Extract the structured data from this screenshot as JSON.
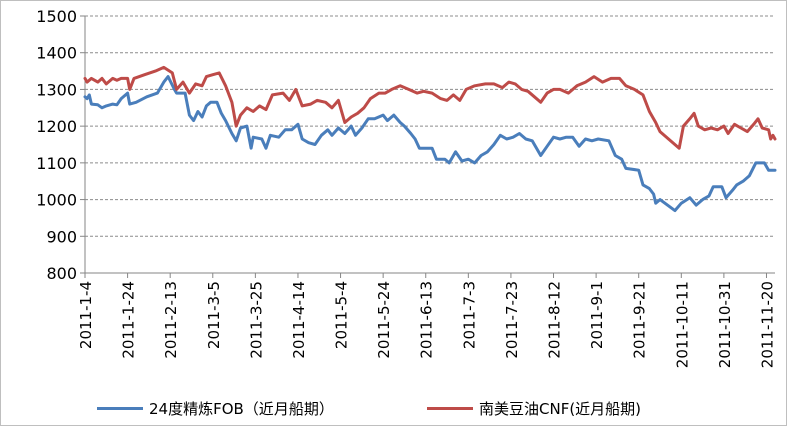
{
  "chart_data": {
    "type": "line",
    "title": "",
    "xlabel": "",
    "ylabel": "",
    "ylim": [
      800,
      1500
    ],
    "y_ticks": [
      800,
      900,
      1000,
      1100,
      1200,
      1300,
      1400,
      1500
    ],
    "x_tick_labels": [
      "2011-1-4",
      "2011-1-24",
      "2011-2-13",
      "2011-3-5",
      "2011-3-25",
      "2011-4-14",
      "2011-5-4",
      "2011-5-24",
      "2011-6-13",
      "2011-7-3",
      "2011-7-23",
      "2011-8-12",
      "2011-9-1",
      "2011-9-21",
      "2011-10-11",
      "2011-10-31",
      "2011-11-20"
    ],
    "x_start": "2011-01-04",
    "x_end": "2011-11-24",
    "grid": true,
    "legend_position": "bottom",
    "series": [
      {
        "name": "24度精炼FOB（近月船期）",
        "color": "#4a7ebb",
        "points": [
          [
            "2011-01-04",
            1280
          ],
          [
            "2011-01-05",
            1275
          ],
          [
            "2011-01-06",
            1285
          ],
          [
            "2011-01-07",
            1260
          ],
          [
            "2011-01-10",
            1258
          ],
          [
            "2011-01-12",
            1250
          ],
          [
            "2011-01-14",
            1255
          ],
          [
            "2011-01-17",
            1260
          ],
          [
            "2011-01-19",
            1258
          ],
          [
            "2011-01-21",
            1275
          ],
          [
            "2011-01-24",
            1290
          ],
          [
            "2011-01-25",
            1260
          ],
          [
            "2011-01-28",
            1265
          ],
          [
            "2011-02-02",
            1280
          ],
          [
            "2011-02-07",
            1290
          ],
          [
            "2011-02-10",
            1320
          ],
          [
            "2011-02-12",
            1335
          ],
          [
            "2011-02-15",
            1300
          ],
          [
            "2011-02-16",
            1290
          ],
          [
            "2011-02-20",
            1290
          ],
          [
            "2011-02-22",
            1230
          ],
          [
            "2011-02-24",
            1215
          ],
          [
            "2011-02-26",
            1240
          ],
          [
            "2011-02-28",
            1225
          ],
          [
            "2011-03-02",
            1255
          ],
          [
            "2011-03-04",
            1265
          ],
          [
            "2011-03-07",
            1265
          ],
          [
            "2011-03-09",
            1235
          ],
          [
            "2011-03-11",
            1215
          ],
          [
            "2011-03-14",
            1180
          ],
          [
            "2011-03-16",
            1160
          ],
          [
            "2011-03-18",
            1195
          ],
          [
            "2011-03-21",
            1200
          ],
          [
            "2011-03-23",
            1140
          ],
          [
            "2011-03-24",
            1170
          ],
          [
            "2011-03-28",
            1165
          ],
          [
            "2011-03-30",
            1140
          ],
          [
            "2011-04-01",
            1175
          ],
          [
            "2011-04-05",
            1170
          ],
          [
            "2011-04-08",
            1190
          ],
          [
            "2011-04-11",
            1190
          ],
          [
            "2011-04-14",
            1205
          ],
          [
            "2011-04-16",
            1165
          ],
          [
            "2011-04-19",
            1155
          ],
          [
            "2011-04-22",
            1150
          ],
          [
            "2011-04-25",
            1175
          ],
          [
            "2011-04-28",
            1190
          ],
          [
            "2011-04-30",
            1175
          ],
          [
            "2011-05-03",
            1195
          ],
          [
            "2011-05-06",
            1180
          ],
          [
            "2011-05-09",
            1200
          ],
          [
            "2011-05-11",
            1175
          ],
          [
            "2011-05-14",
            1195
          ],
          [
            "2011-05-17",
            1220
          ],
          [
            "2011-05-20",
            1220
          ],
          [
            "2011-05-24",
            1230
          ],
          [
            "2011-05-26",
            1215
          ],
          [
            "2011-05-29",
            1230
          ],
          [
            "2011-06-01",
            1210
          ],
          [
            "2011-06-03",
            1200
          ],
          [
            "2011-06-06",
            1180
          ],
          [
            "2011-06-08",
            1165
          ],
          [
            "2011-06-10",
            1140
          ],
          [
            "2011-06-16",
            1140
          ],
          [
            "2011-06-18",
            1110
          ],
          [
            "2011-06-22",
            1110
          ],
          [
            "2011-06-24",
            1100
          ],
          [
            "2011-06-27",
            1130
          ],
          [
            "2011-06-30",
            1105
          ],
          [
            "2011-07-03",
            1110
          ],
          [
            "2011-07-06",
            1100
          ],
          [
            "2011-07-09",
            1120
          ],
          [
            "2011-07-12",
            1130
          ],
          [
            "2011-07-15",
            1150
          ],
          [
            "2011-07-18",
            1175
          ],
          [
            "2011-07-21",
            1165
          ],
          [
            "2011-07-24",
            1170
          ],
          [
            "2011-07-27",
            1180
          ],
          [
            "2011-07-30",
            1165
          ],
          [
            "2011-08-02",
            1160
          ],
          [
            "2011-08-06",
            1120
          ],
          [
            "2011-08-09",
            1145
          ],
          [
            "2011-08-12",
            1170
          ],
          [
            "2011-08-15",
            1165
          ],
          [
            "2011-08-18",
            1170
          ],
          [
            "2011-08-21",
            1170
          ],
          [
            "2011-08-24",
            1145
          ],
          [
            "2011-08-27",
            1165
          ],
          [
            "2011-08-30",
            1160
          ],
          [
            "2011-09-02",
            1165
          ],
          [
            "2011-09-07",
            1160
          ],
          [
            "2011-09-10",
            1120
          ],
          [
            "2011-09-13",
            1110
          ],
          [
            "2011-09-15",
            1085
          ],
          [
            "2011-09-21",
            1080
          ],
          [
            "2011-09-23",
            1040
          ],
          [
            "2011-09-26",
            1030
          ],
          [
            "2011-09-28",
            1015
          ],
          [
            "2011-09-29",
            990
          ],
          [
            "2011-10-01",
            1000
          ],
          [
            "2011-10-08",
            970
          ],
          [
            "2011-10-11",
            990
          ],
          [
            "2011-10-15",
            1005
          ],
          [
            "2011-10-18",
            985
          ],
          [
            "2011-10-21",
            1000
          ],
          [
            "2011-10-24",
            1010
          ],
          [
            "2011-10-26",
            1035
          ],
          [
            "2011-10-30",
            1035
          ],
          [
            "2011-11-01",
            1005
          ],
          [
            "2011-11-04",
            1025
          ],
          [
            "2011-11-06",
            1040
          ],
          [
            "2011-11-09",
            1050
          ],
          [
            "2011-11-12",
            1065
          ],
          [
            "2011-11-15",
            1100
          ],
          [
            "2011-11-19",
            1100
          ],
          [
            "2011-11-21",
            1080
          ],
          [
            "2011-11-24",
            1080
          ]
        ]
      },
      {
        "name": "南美豆油CNF(近月船期)",
        "color": "#be4b48",
        "points": [
          [
            "2011-01-04",
            1330
          ],
          [
            "2011-01-05",
            1320
          ],
          [
            "2011-01-07",
            1330
          ],
          [
            "2011-01-10",
            1320
          ],
          [
            "2011-01-12",
            1330
          ],
          [
            "2011-01-14",
            1315
          ],
          [
            "2011-01-17",
            1330
          ],
          [
            "2011-01-19",
            1325
          ],
          [
            "2011-01-21",
            1330
          ],
          [
            "2011-01-24",
            1330
          ],
          [
            "2011-01-25",
            1300
          ],
          [
            "2011-01-27",
            1330
          ],
          [
            "2011-02-01",
            1340
          ],
          [
            "2011-02-06",
            1350
          ],
          [
            "2011-02-10",
            1360
          ],
          [
            "2011-02-14",
            1345
          ],
          [
            "2011-02-16",
            1300
          ],
          [
            "2011-02-19",
            1320
          ],
          [
            "2011-02-22",
            1290
          ],
          [
            "2011-02-25",
            1315
          ],
          [
            "2011-02-28",
            1310
          ],
          [
            "2011-03-02",
            1335
          ],
          [
            "2011-03-05",
            1340
          ],
          [
            "2011-03-08",
            1345
          ],
          [
            "2011-03-11",
            1310
          ],
          [
            "2011-03-14",
            1265
          ],
          [
            "2011-03-16",
            1200
          ],
          [
            "2011-03-18",
            1230
          ],
          [
            "2011-03-21",
            1250
          ],
          [
            "2011-03-24",
            1240
          ],
          [
            "2011-03-27",
            1255
          ],
          [
            "2011-03-30",
            1245
          ],
          [
            "2011-04-02",
            1285
          ],
          [
            "2011-04-07",
            1290
          ],
          [
            "2011-04-10",
            1270
          ],
          [
            "2011-04-13",
            1300
          ],
          [
            "2011-04-16",
            1255
          ],
          [
            "2011-04-20",
            1260
          ],
          [
            "2011-04-23",
            1270
          ],
          [
            "2011-04-27",
            1265
          ],
          [
            "2011-04-30",
            1250
          ],
          [
            "2011-05-03",
            1270
          ],
          [
            "2011-05-06",
            1210
          ],
          [
            "2011-05-09",
            1225
          ],
          [
            "2011-05-12",
            1235
          ],
          [
            "2011-05-15",
            1250
          ],
          [
            "2011-05-18",
            1275
          ],
          [
            "2011-05-22",
            1290
          ],
          [
            "2011-05-25",
            1290
          ],
          [
            "2011-05-28",
            1300
          ],
          [
            "2011-06-01",
            1310
          ],
          [
            "2011-06-05",
            1300
          ],
          [
            "2011-06-09",
            1290
          ],
          [
            "2011-06-12",
            1295
          ],
          [
            "2011-06-16",
            1290
          ],
          [
            "2011-06-20",
            1275
          ],
          [
            "2011-06-23",
            1270
          ],
          [
            "2011-06-26",
            1285
          ],
          [
            "2011-06-29",
            1270
          ],
          [
            "2011-07-02",
            1300
          ],
          [
            "2011-07-06",
            1310
          ],
          [
            "2011-07-11",
            1315
          ],
          [
            "2011-07-15",
            1315
          ],
          [
            "2011-07-19",
            1305
          ],
          [
            "2011-07-22",
            1320
          ],
          [
            "2011-07-25",
            1315
          ],
          [
            "2011-07-28",
            1300
          ],
          [
            "2011-07-31",
            1295
          ],
          [
            "2011-08-03",
            1280
          ],
          [
            "2011-08-06",
            1265
          ],
          [
            "2011-08-09",
            1290
          ],
          [
            "2011-08-12",
            1300
          ],
          [
            "2011-08-15",
            1300
          ],
          [
            "2011-08-19",
            1290
          ],
          [
            "2011-08-23",
            1310
          ],
          [
            "2011-08-27",
            1320
          ],
          [
            "2011-08-31",
            1335
          ],
          [
            "2011-09-04",
            1320
          ],
          [
            "2011-09-08",
            1330
          ],
          [
            "2011-09-12",
            1330
          ],
          [
            "2011-09-15",
            1310
          ],
          [
            "2011-09-19",
            1300
          ],
          [
            "2011-09-23",
            1285
          ],
          [
            "2011-09-26",
            1240
          ],
          [
            "2011-09-29",
            1210
          ],
          [
            "2011-10-01",
            1185
          ],
          [
            "2011-10-10",
            1140
          ],
          [
            "2011-10-12",
            1200
          ],
          [
            "2011-10-15",
            1220
          ],
          [
            "2011-10-17",
            1235
          ],
          [
            "2011-10-19",
            1200
          ],
          [
            "2011-10-22",
            1190
          ],
          [
            "2011-10-25",
            1195
          ],
          [
            "2011-10-28",
            1190
          ],
          [
            "2011-10-31",
            1200
          ],
          [
            "2011-11-02",
            1180
          ],
          [
            "2011-11-05",
            1205
          ],
          [
            "2011-11-08",
            1195
          ],
          [
            "2011-11-11",
            1185
          ],
          [
            "2011-11-14",
            1205
          ],
          [
            "2011-11-16",
            1220
          ],
          [
            "2011-11-18",
            1195
          ],
          [
            "2011-11-21",
            1190
          ],
          [
            "2011-11-22",
            1165
          ],
          [
            "2011-11-23",
            1175
          ],
          [
            "2011-11-24",
            1165
          ]
        ]
      }
    ]
  }
}
